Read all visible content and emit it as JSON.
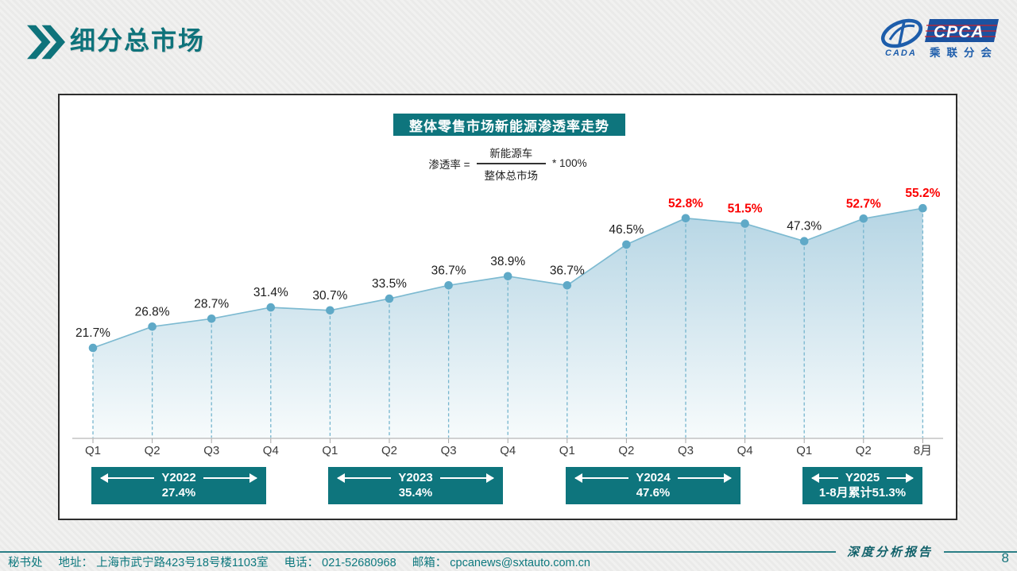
{
  "page": {
    "title": "细分总市场",
    "page_number": "8"
  },
  "logo": {
    "cpca": "CPCA",
    "subtext": "乘联分会",
    "mark": "CADA"
  },
  "chart": {
    "title": "整体零售市场新能源渗透率走势",
    "formula": {
      "lhs": "渗透率 =",
      "numerator": "新能源车",
      "denominator": "整体总市场",
      "rhs": "* 100%"
    }
  },
  "chart_data": {
    "type": "area",
    "title": "整体零售市场新能源渗透率走势",
    "x": [
      "Q1",
      "Q2",
      "Q3",
      "Q4",
      "Q1",
      "Q2",
      "Q3",
      "Q4",
      "Q1",
      "Q2",
      "Q3",
      "Q4",
      "Q1",
      "Q2",
      "8月"
    ],
    "values": [
      21.7,
      26.8,
      28.7,
      31.4,
      30.7,
      33.5,
      36.7,
      38.9,
      36.7,
      46.5,
      52.8,
      51.5,
      47.3,
      52.7,
      55.2
    ],
    "labels": [
      "21.7%",
      "26.8%",
      "28.7%",
      "31.4%",
      "30.7%",
      "33.5%",
      "36.7%",
      "38.9%",
      "36.7%",
      "46.5%",
      "52.8%",
      "51.5%",
      "47.3%",
      "52.7%",
      "55.2%"
    ],
    "highlight_indices": [
      10,
      11,
      13,
      14
    ],
    "ylim": [
      0,
      60
    ],
    "grid": false,
    "year_groups": [
      {
        "label": "Y2022",
        "value": "27.4%",
        "span": [
          0,
          3
        ]
      },
      {
        "label": "Y2023",
        "value": "35.4%",
        "span": [
          4,
          7
        ]
      },
      {
        "label": "Y2024",
        "value": "47.6%",
        "span": [
          8,
          11
        ]
      },
      {
        "label": "Y2025",
        "value": "1-8月累计51.3%",
        "span": [
          12,
          14
        ]
      }
    ],
    "colors": {
      "line": "#7dbad1",
      "marker": "#5fa9c7",
      "dash": "#76b5ce",
      "area_top": "#b5d5e4",
      "area_bottom": "#f7fbfc",
      "label": "#1c1c1c",
      "label_highlight": "#fb0000",
      "axis": "#a6a6a6",
      "tick_label": "#3c3c3c",
      "box_bg": "#0e757d",
      "accent_teal": "#0e737b"
    }
  },
  "footer": {
    "report_label": "深度分析报告",
    "secretariat": "秘书处",
    "address_label": "地址：",
    "address": "上海市武宁路423号18号楼1103室",
    "phone_label": "电话：",
    "phone": "021-52680968",
    "email_label": "邮箱：",
    "email": "cpcanews@sxtauto.com.cn"
  }
}
